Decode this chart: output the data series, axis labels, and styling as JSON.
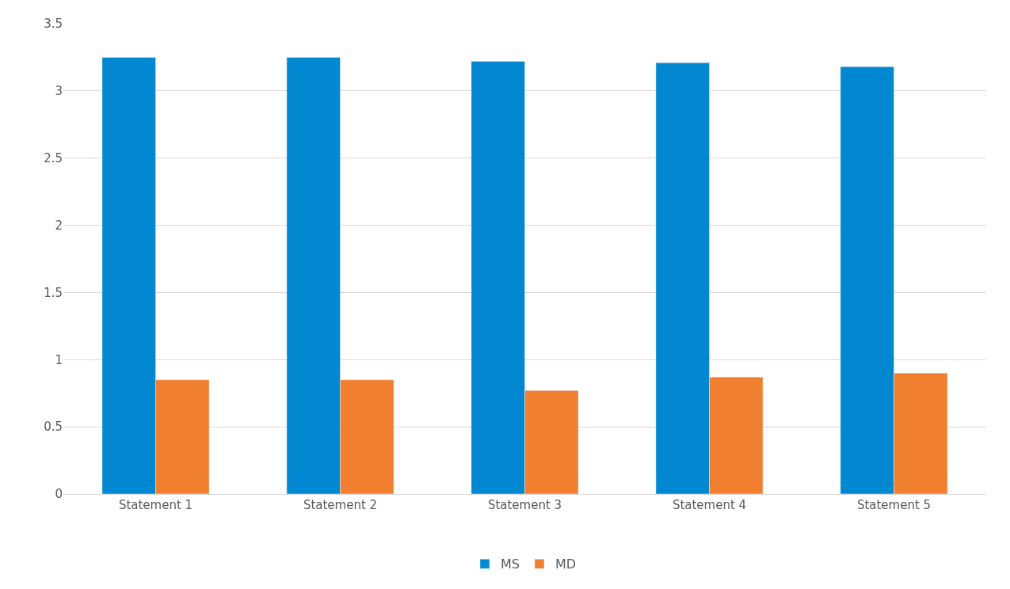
{
  "chart_data": {
    "type": "bar",
    "categories": [
      "Statement 1",
      "Statement 2",
      "Statement 3",
      "Statement 4",
      "Statement 5"
    ],
    "series": [
      {
        "name": "MS",
        "color": "#0288d1",
        "values": [
          3.25,
          3.25,
          3.22,
          3.21,
          3.18
        ]
      },
      {
        "name": "MD",
        "color": "#f08030",
        "values": [
          0.85,
          0.85,
          0.77,
          0.87,
          0.9
        ]
      }
    ],
    "ylim": [
      0,
      3.5
    ],
    "yticks": [
      0,
      0.5,
      1,
      1.5,
      2,
      2.5,
      3,
      3.5
    ],
    "grid": "y",
    "legend": "bottom"
  }
}
